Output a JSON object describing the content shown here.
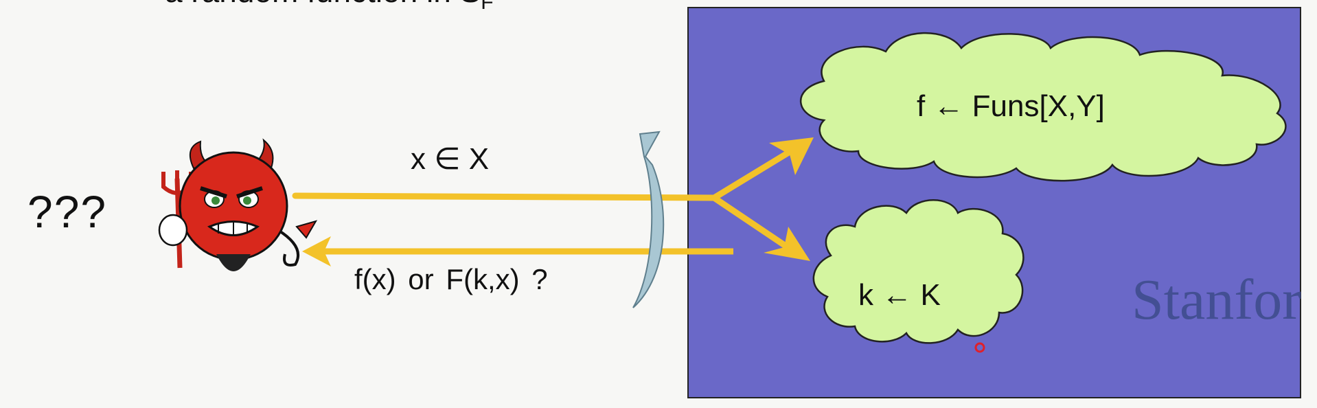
{
  "slide": {
    "title_partial": "a random function in S",
    "title_subscript": "F",
    "adversary_label": "???",
    "query_label": "x ∈ X",
    "response_label": "f(x)  or  F(k,x)  ?",
    "cloud_top_label": "f ← Funs[X,Y]",
    "cloud_bottom_label": "k ← K",
    "watermark": "Stanfor",
    "colors": {
      "panel": "#6a68c8",
      "cloud": "#d4f5a0",
      "arrow": "#f3c22a",
      "devil": "#d8281c"
    }
  }
}
